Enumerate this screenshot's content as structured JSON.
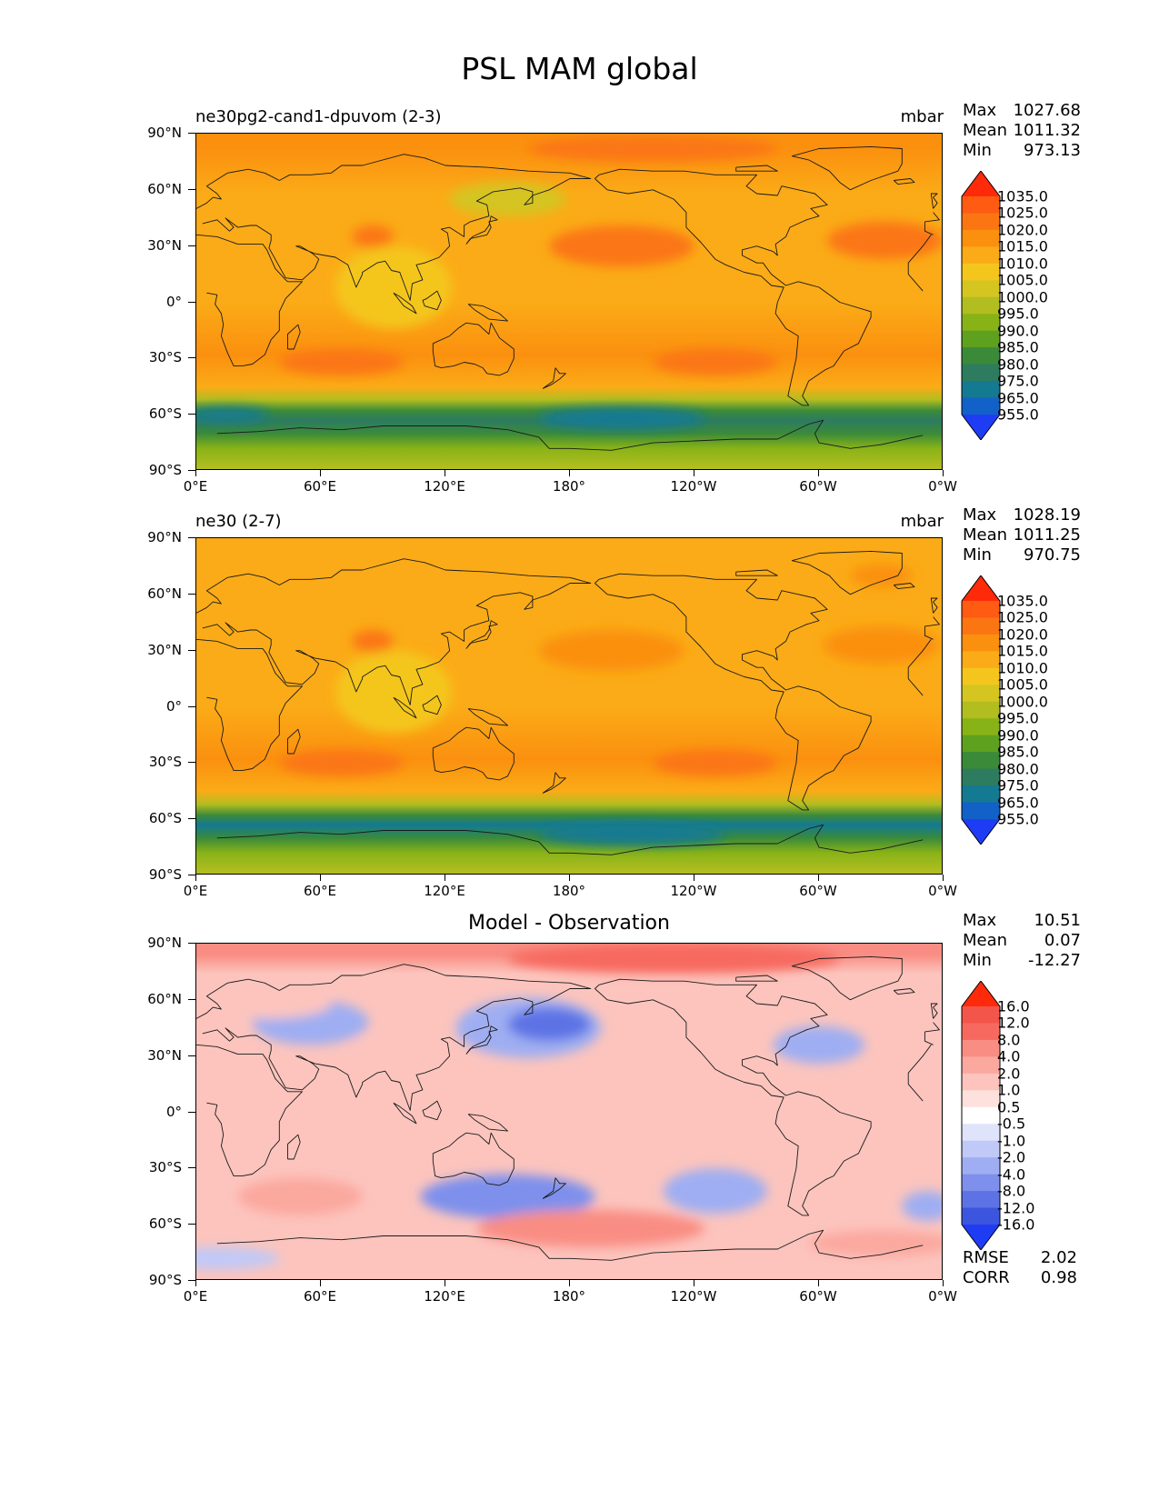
{
  "figure": {
    "title": "PSL MAM global"
  },
  "chart_data": [
    {
      "type": "heatmap",
      "subtype": "filled-contour-map",
      "title_left": "ne30pg2-cand1-dpuvom (2-3)",
      "units": "mbar",
      "stats": {
        "max_label": "Max",
        "max": "1027.68",
        "mean_label": "Mean",
        "mean": "1011.32",
        "min_label": "Min",
        "min": "973.13"
      },
      "lat_ticks": [
        "90°N",
        "60°N",
        "30°N",
        "0°",
        "30°S",
        "60°S",
        "90°S"
      ],
      "lon_ticks": [
        "0°E",
        "60°E",
        "120°E",
        "180°",
        "120°W",
        "60°W",
        "0°W"
      ],
      "lon_range": [
        0,
        360
      ],
      "lat_range": [
        -90,
        90
      ],
      "colorbar": {
        "levels": [
          "1035.0",
          "1025.0",
          "1020.0",
          "1015.0",
          "1010.0",
          "1005.0",
          "1000.0",
          "995.0",
          "990.0",
          "985.0",
          "980.0",
          "975.0",
          "965.0",
          "955.0"
        ],
        "colors": [
          "#ff2a0a",
          "#ff5b12",
          "#fb7612",
          "#fb900f",
          "#fbab17",
          "#f4c61d",
          "#d4c521",
          "#b2bd20",
          "#88b317",
          "#5ea11e",
          "#3b8a3a",
          "#2d7c60",
          "#137a92",
          "#1261c8",
          "#1f3cf5"
        ]
      },
      "field": {
        "base_color": "#fbab17",
        "bands": [
          {
            "lat": 82,
            "color": "#fb900f"
          },
          {
            "lat": 58,
            "color": "#fbab17"
          },
          {
            "lat": 30,
            "color": "#fbab17"
          },
          {
            "lat": 0,
            "color": "#fbab17"
          },
          {
            "lat": -28,
            "color": "#fb900f"
          },
          {
            "lat": -45,
            "color": "#fbab17"
          },
          {
            "lat": -52,
            "color": "#b2bd20"
          },
          {
            "lat": -58,
            "color": "#3b8a3a"
          },
          {
            "lat": -63,
            "color": "#2d7c60"
          },
          {
            "lat": -70,
            "color": "#3b8a3a"
          },
          {
            "lat": -78,
            "color": "#88b317"
          },
          {
            "lat": -88,
            "color": "#b2bd20"
          }
        ],
        "blobs": [
          {
            "lon": 205,
            "lat": 30,
            "rlon": 35,
            "rlat": 11,
            "color": "#fb7612"
          },
          {
            "lon": 332,
            "lat": 33,
            "rlon": 28,
            "rlat": 10,
            "color": "#fb7612"
          },
          {
            "lon": 150,
            "lat": 55,
            "rlon": 28,
            "rlat": 9,
            "color": "#d4c521"
          },
          {
            "lon": 95,
            "lat": 8,
            "rlon": 28,
            "rlat": 22,
            "color": "#f4c61d"
          },
          {
            "lon": 85,
            "lat": 35,
            "rlon": 10,
            "rlat": 6,
            "color": "#fb7612"
          },
          {
            "lon": 70,
            "lat": -32,
            "rlon": 30,
            "rlat": 7,
            "color": "#fb7612"
          },
          {
            "lon": 250,
            "lat": -32,
            "rlon": 30,
            "rlat": 7,
            "color": "#fb7612"
          },
          {
            "lon": 220,
            "lat": 82,
            "rlon": 60,
            "rlat": 7,
            "color": "#fb7612"
          },
          {
            "lon": 205,
            "lat": -62,
            "rlon": 40,
            "rlat": 6,
            "color": "#137a92"
          },
          {
            "lon": 15,
            "lat": -60,
            "rlon": 20,
            "rlat": 4,
            "color": "#137a92"
          }
        ]
      }
    },
    {
      "type": "heatmap",
      "subtype": "filled-contour-map",
      "title_left": "ne30 (2-7)",
      "units": "mbar",
      "stats": {
        "max_label": "Max",
        "max": "1028.19",
        "mean_label": "Mean",
        "mean": "1011.25",
        "min_label": "Min",
        "min": "970.75"
      },
      "lat_ticks": [
        "90°N",
        "60°N",
        "30°N",
        "0°",
        "30°S",
        "60°S",
        "90°S"
      ],
      "lon_ticks": [
        "0°E",
        "60°E",
        "120°E",
        "180°",
        "120°W",
        "60°W",
        "0°W"
      ],
      "lon_range": [
        0,
        360
      ],
      "lat_range": [
        -90,
        90
      ],
      "colorbar": {
        "levels": [
          "1035.0",
          "1025.0",
          "1020.0",
          "1015.0",
          "1010.0",
          "1005.0",
          "1000.0",
          "995.0",
          "990.0",
          "985.0",
          "980.0",
          "975.0",
          "965.0",
          "955.0"
        ],
        "colors": [
          "#ff2a0a",
          "#ff5b12",
          "#fb7612",
          "#fb900f",
          "#fbab17",
          "#f4c61d",
          "#d4c521",
          "#b2bd20",
          "#88b317",
          "#5ea11e",
          "#3b8a3a",
          "#2d7c60",
          "#137a92",
          "#1261c8",
          "#1f3cf5"
        ]
      },
      "field": {
        "base_color": "#fbab17",
        "bands": [
          {
            "lat": 82,
            "color": "#fbab17"
          },
          {
            "lat": 58,
            "color": "#fbab17"
          },
          {
            "lat": 30,
            "color": "#fbab17"
          },
          {
            "lat": 0,
            "color": "#fbab17"
          },
          {
            "lat": -28,
            "color": "#fb900f"
          },
          {
            "lat": -45,
            "color": "#fbab17"
          },
          {
            "lat": -52,
            "color": "#b2bd20"
          },
          {
            "lat": -58,
            "color": "#3b8a3a"
          },
          {
            "lat": -63,
            "color": "#137a92"
          },
          {
            "lat": -70,
            "color": "#3b8a3a"
          },
          {
            "lat": -78,
            "color": "#88b317"
          },
          {
            "lat": -88,
            "color": "#b2bd20"
          }
        ],
        "blobs": [
          {
            "lon": 200,
            "lat": 30,
            "rlon": 35,
            "rlat": 11,
            "color": "#fb900f"
          },
          {
            "lon": 330,
            "lat": 33,
            "rlon": 28,
            "rlat": 10,
            "color": "#fb900f"
          },
          {
            "lon": 95,
            "lat": 8,
            "rlon": 28,
            "rlat": 22,
            "color": "#f4c61d"
          },
          {
            "lon": 85,
            "lat": 35,
            "rlon": 10,
            "rlat": 6,
            "color": "#fb7612"
          },
          {
            "lon": 70,
            "lat": -30,
            "rlon": 30,
            "rlat": 7,
            "color": "#fb7612"
          },
          {
            "lon": 250,
            "lat": -30,
            "rlon": 30,
            "rlat": 7,
            "color": "#fb7612"
          },
          {
            "lon": 210,
            "lat": -68,
            "rlon": 45,
            "rlat": 6,
            "color": "#137a92"
          },
          {
            "lon": 330,
            "lat": 70,
            "rlon": 15,
            "rlat": 6,
            "color": "#fb900f"
          }
        ]
      }
    },
    {
      "type": "heatmap",
      "subtype": "filled-contour-map",
      "title_center": "Model - Observation",
      "units": "",
      "stats": {
        "max_label": "Max",
        "max": "10.51",
        "mean_label": "Mean",
        "mean": "0.07",
        "min_label": "Min",
        "min": "-12.27"
      },
      "footer_stats": {
        "rmse_label": "RMSE",
        "rmse": "2.02",
        "corr_label": "CORR",
        "corr": "0.98"
      },
      "lat_ticks": [
        "90°N",
        "60°N",
        "30°N",
        "0°",
        "30°S",
        "60°S",
        "90°S"
      ],
      "lon_ticks": [
        "0°E",
        "60°E",
        "120°E",
        "180°",
        "120°W",
        "60°W",
        "0°W"
      ],
      "lon_range": [
        0,
        360
      ],
      "lat_range": [
        -90,
        90
      ],
      "colorbar": {
        "levels": [
          "16.0",
          "12.0",
          "8.0",
          "4.0",
          "2.0",
          "1.0",
          "0.5",
          "-0.5",
          "-1.0",
          "-2.0",
          "-4.0",
          "-8.0",
          "-12.0",
          "-16.0"
        ],
        "colors": [
          "#ff2a0a",
          "#f4554a",
          "#f7695f",
          "#f98d83",
          "#fba89f",
          "#fcc4bd",
          "#fde1dd",
          "#ffffff",
          "#dfe4fb",
          "#c0c9f7",
          "#9faef2",
          "#7e90ec",
          "#5d73e5",
          "#3b55df",
          "#1f3cf5"
        ]
      },
      "field": {
        "base_color": "#ffffff",
        "bands": [
          {
            "lat": 84,
            "color": "#f98d83"
          },
          {
            "lat": 74,
            "color": "#fcc4bd"
          }
        ],
        "blobs": [
          {
            "lon": 230,
            "lat": 82,
            "rlon": 80,
            "rlat": 8,
            "color": "#f7695f"
          },
          {
            "lon": 160,
            "lat": 45,
            "rlon": 35,
            "rlat": 16,
            "color": "#9faef2"
          },
          {
            "lon": 170,
            "lat": 47,
            "rlon": 20,
            "rlat": 9,
            "color": "#5d73e5"
          },
          {
            "lon": 55,
            "lat": 48,
            "rlon": 28,
            "rlat": 12,
            "color": "#9faef2"
          },
          {
            "lon": 95,
            "lat": 35,
            "rlon": 22,
            "rlat": 8,
            "color": "#fcc4bd"
          },
          {
            "lon": 300,
            "lat": 36,
            "rlon": 22,
            "rlat": 10,
            "color": "#9faef2"
          },
          {
            "lon": 150,
            "lat": -45,
            "rlon": 42,
            "rlat": 12,
            "color": "#7e90ec"
          },
          {
            "lon": 250,
            "lat": -42,
            "rlon": 25,
            "rlat": 12,
            "color": "#9faef2"
          },
          {
            "lon": 190,
            "lat": -62,
            "rlon": 55,
            "rlat": 10,
            "color": "#f98d83"
          },
          {
            "lon": 50,
            "lat": -45,
            "rlon": 30,
            "rlat": 10,
            "color": "#fba89f"
          },
          {
            "lon": 330,
            "lat": -70,
            "rlon": 35,
            "rlat": 7,
            "color": "#fba89f"
          },
          {
            "lon": 10,
            "lat": -78,
            "rlon": 30,
            "rlat": 6,
            "color": "#c0c9f7"
          },
          {
            "lon": 352,
            "lat": -50,
            "rlon": 12,
            "rlat": 8,
            "color": "#9faef2"
          },
          {
            "lon": 35,
            "lat": 58,
            "rlon": 30,
            "rlat": 8,
            "color": "#fcc4bd"
          },
          {
            "lon": 335,
            "lat": 58,
            "rlon": 25,
            "rlat": 6,
            "color": "#fcc4bd"
          }
        ]
      }
    }
  ]
}
